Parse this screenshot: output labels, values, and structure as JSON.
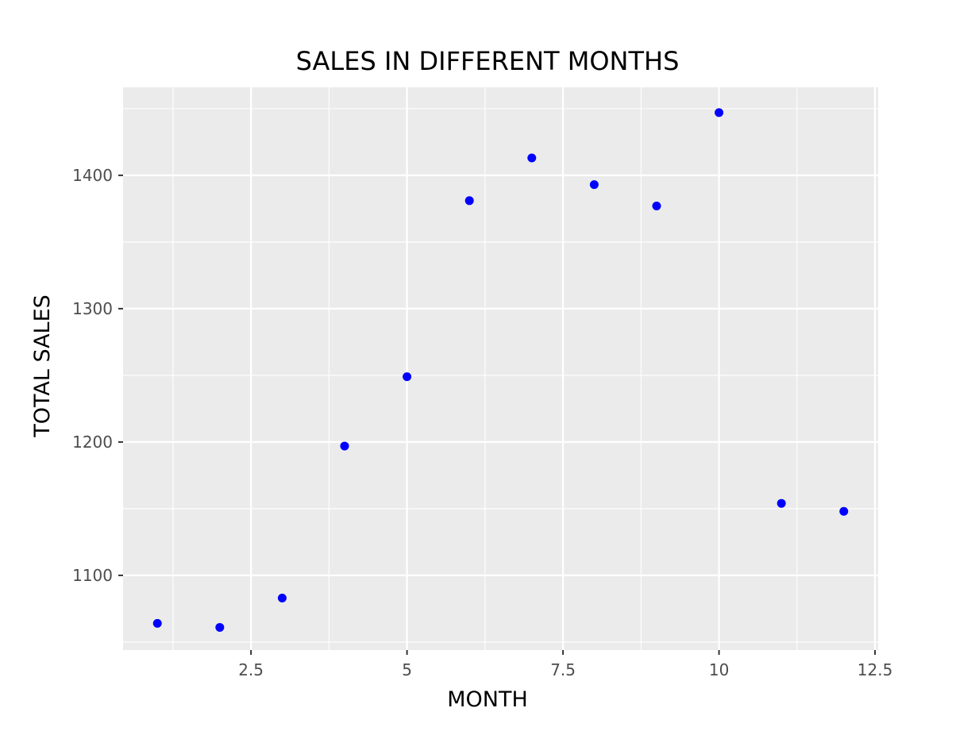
{
  "chart_data": {
    "type": "scatter",
    "title": "SALES IN DIFFERENT MONTHS",
    "xlabel": "MONTH",
    "ylabel": "TOTAL SALES",
    "x": [
      1,
      2,
      3,
      4,
      5,
      6,
      7,
      8,
      9,
      10,
      11,
      12
    ],
    "y": [
      1064,
      1061,
      1083,
      1197,
      1249,
      1381,
      1413,
      1393,
      1377,
      1447,
      1154,
      1148
    ],
    "xlim": [
      0.45,
      12.55
    ],
    "ylim": [
      1044,
      1466
    ],
    "xticks": [
      2.5,
      5,
      7.5,
      10,
      12.5
    ],
    "xtick_labels": [
      "2.5",
      "5",
      "7.5",
      "10",
      "12.5"
    ],
    "yticks": [
      1100,
      1200,
      1300,
      1400
    ],
    "ytick_labels": [
      "1100",
      "1200",
      "1300",
      "1400"
    ],
    "grid": true,
    "point_color": "#0000ff",
    "panel_color": "#ebebeb"
  }
}
